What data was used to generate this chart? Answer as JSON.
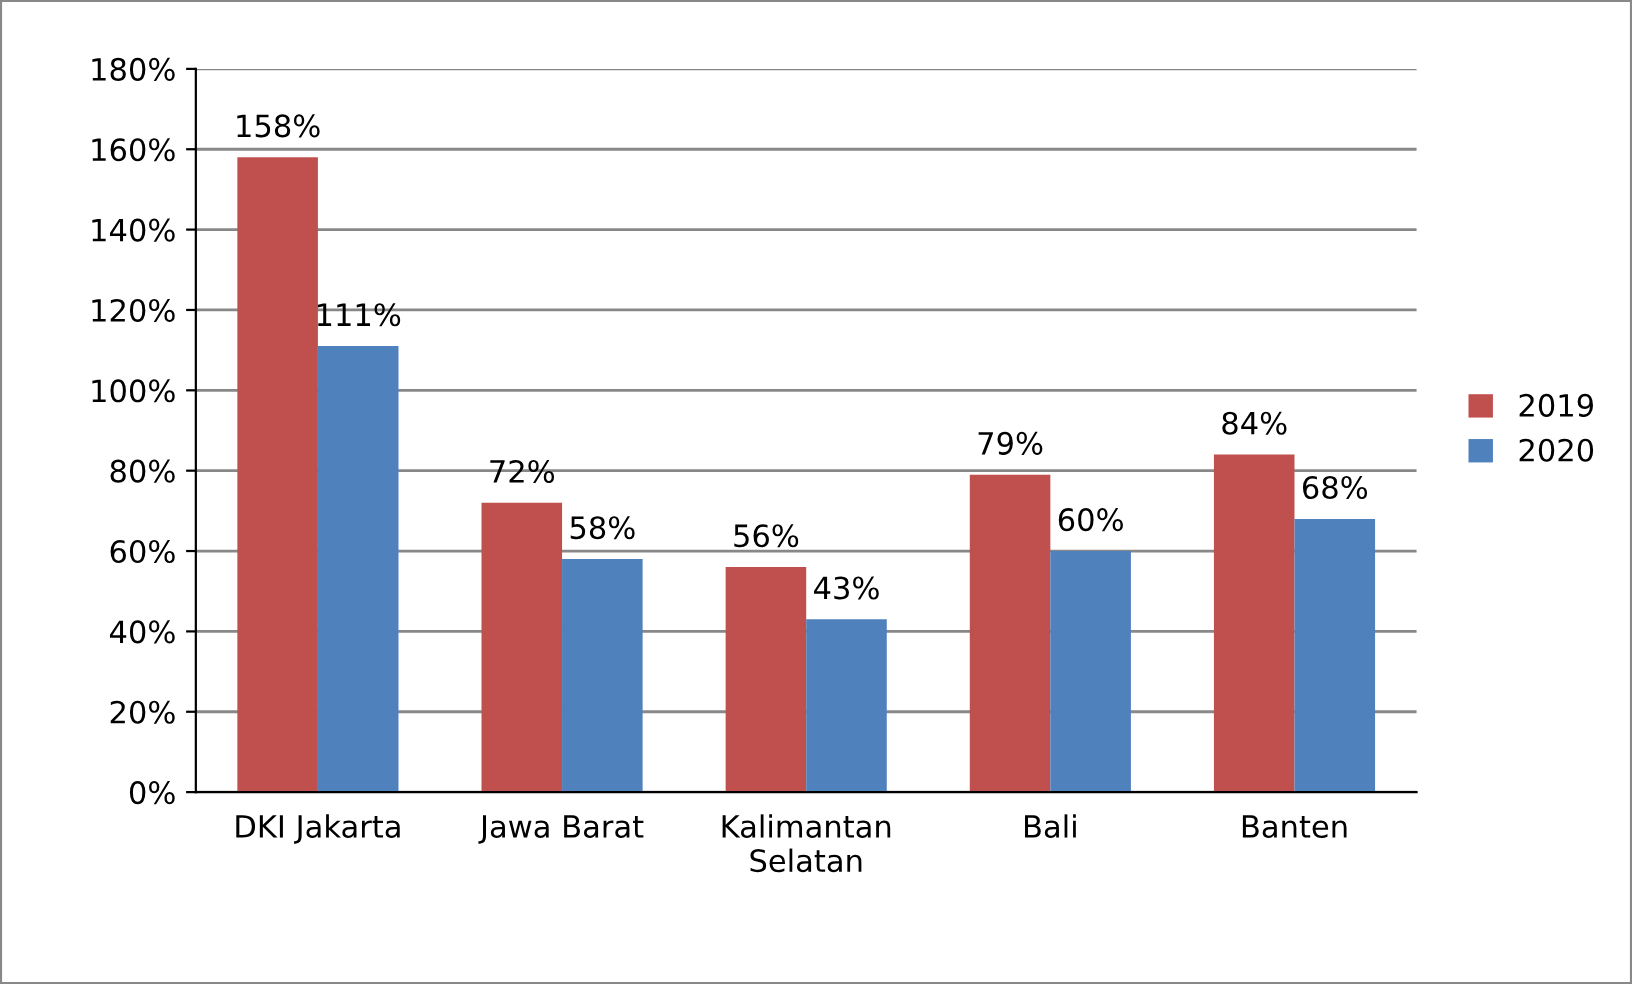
{
  "chart_data": {
    "type": "bar",
    "categories": [
      "DKI Jakarta",
      "Jawa Barat",
      "Kalimantan Selatan",
      "Bali",
      "Banten"
    ],
    "series": [
      {
        "name": "2019",
        "color": "#c0504d",
        "values": [
          158,
          72,
          56,
          79,
          84
        ],
        "value_labels": [
          "158%",
          "72%",
          "56%",
          "79%",
          "84%"
        ]
      },
      {
        "name": "2020",
        "color": "#4f81bd",
        "values": [
          111,
          58,
          43,
          60,
          68
        ],
        "value_labels": [
          "111%",
          "58%",
          "43%",
          "60%",
          "68%"
        ]
      }
    ],
    "ylim": [
      0,
      180
    ],
    "yticks": [
      {
        "value": 0,
        "label": "0%"
      },
      {
        "value": 20,
        "label": "20%"
      },
      {
        "value": 40,
        "label": "40%"
      },
      {
        "value": 60,
        "label": "60%"
      },
      {
        "value": 80,
        "label": "80%"
      },
      {
        "value": 100,
        "label": "100%"
      },
      {
        "value": 120,
        "label": "120%"
      },
      {
        "value": 140,
        "label": "140%"
      },
      {
        "value": 160,
        "label": "160%"
      },
      {
        "value": 180,
        "label": "180%"
      }
    ],
    "grid": "y",
    "legend": "right"
  }
}
